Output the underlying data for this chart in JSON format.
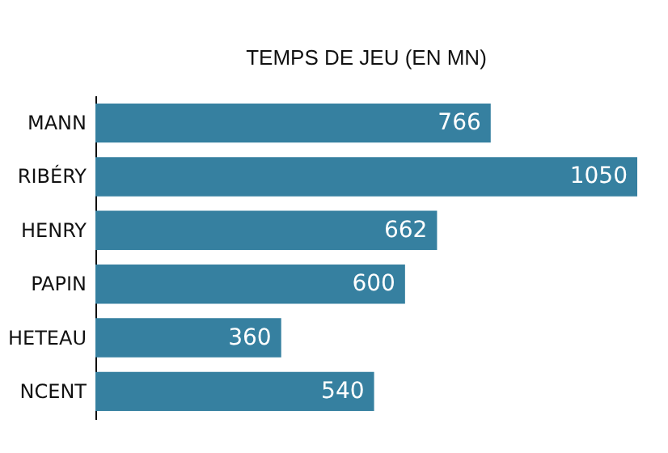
{
  "chart_data": {
    "type": "bar",
    "orientation": "horizontal",
    "title": "TEMPS DE JEU (EN MN)",
    "categories": [
      "MANN",
      "RIBÉRY",
      "HENRY",
      "PAPIN",
      "HETEAU",
      "NCENT"
    ],
    "values": [
      766,
      1050,
      662,
      600,
      360,
      540
    ],
    "color": "#3680a0",
    "data_labels": true,
    "grid": false
  }
}
